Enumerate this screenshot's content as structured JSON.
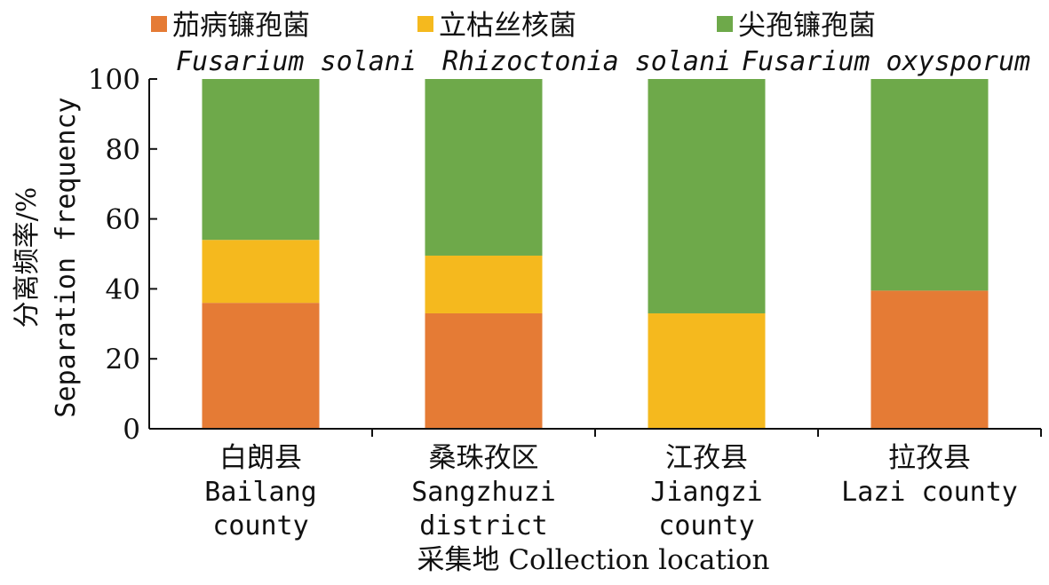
{
  "chart_data": {
    "type": "bar",
    "stacked": true,
    "categories": [
      {
        "cn": "白朗县",
        "en": [
          "Bailang",
          "county"
        ]
      },
      {
        "cn": "桑珠孜区",
        "en": [
          "Sangzhuzi",
          "district"
        ]
      },
      {
        "cn": "江孜县",
        "en": [
          "Jiangzi",
          "county"
        ]
      },
      {
        "cn": "拉孜县",
        "en": [
          "Lazi county"
        ]
      }
    ],
    "series": [
      {
        "name_cn": "茄病镰孢菌",
        "name_en": "Fusarium solani",
        "color": "#E57B35",
        "values": [
          36,
          33,
          0,
          39.5
        ]
      },
      {
        "name_cn": "立枯丝核菌",
        "name_en": "Rhizoctonia solani",
        "color": "#F5B91E",
        "values": [
          18,
          16.5,
          33,
          0
        ]
      },
      {
        "name_cn": "尖孢镰孢菌",
        "name_en": "Fusarium oxysporum",
        "color": "#6EA94A",
        "values": [
          46,
          50.5,
          67,
          60.5
        ]
      }
    ],
    "ylabel_cn": "分离频率/%",
    "ylabel_en": "Separation frequency",
    "xlabel": "采集地 Collection location",
    "ylim": [
      0,
      100
    ],
    "yticks": [
      "0",
      "20",
      "40",
      "60",
      "80",
      "100"
    ],
    "legend_position": "top",
    "grid": false
  }
}
